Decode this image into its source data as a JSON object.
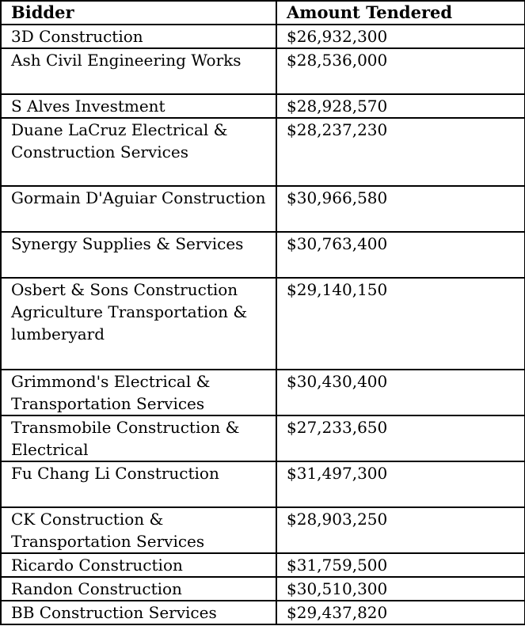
{
  "table": {
    "headers": [
      "Bidder",
      "Amount Tendered"
    ],
    "rows": [
      {
        "bidder": "3D Construction",
        "amount": "$26,932,300"
      },
      {
        "bidder": "Ash Civil Engineering Works",
        "amount": "$28,536,000"
      },
      {
        "bidder": "S Alves Investment",
        "amount": "$28,928,570"
      },
      {
        "bidder": "Duane LaCruz Electrical & Construction Services",
        "amount": "$28,237,230"
      },
      {
        "bidder": "Gormain D'Aguiar Construction",
        "amount": "$30,966,580"
      },
      {
        "bidder": "Synergy Supplies & Services",
        "amount": "$30,763,400"
      },
      {
        "bidder": "Osbert & Sons Construction Agriculture Transportation & lumberyard",
        "amount": "$29,140,150"
      },
      {
        "bidder": "Grimmond's Electrical & Transportation Services",
        "amount": "$30,430,400"
      },
      {
        "bidder": "Transmobile Construction & Electrical",
        "amount": "$27,233,650"
      },
      {
        "bidder": "Fu Chang Li Construction",
        "amount": "$31,497,300"
      },
      {
        "bidder": "CK Construction & Transportation Services",
        "amount": "$28,903,250"
      },
      {
        "bidder": "Ricardo Construction",
        "amount": "$31,759,500"
      },
      {
        "bidder": "Randon Construction",
        "amount": "$30,510,300"
      },
      {
        "bidder": "BB Construction Services",
        "amount": "$29,437,820"
      }
    ]
  }
}
